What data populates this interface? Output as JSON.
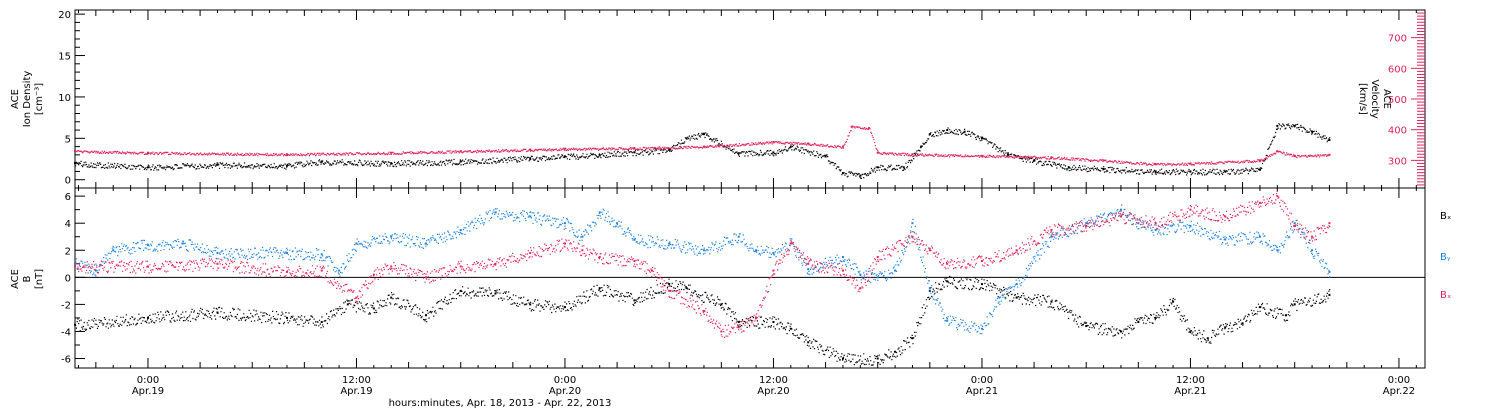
{
  "xaxis": {
    "title": "hours:minutes, Apr. 18, 2013 - Apr. 22, 2013",
    "ticks": [
      {
        "hour": 0,
        "time": "0:00",
        "day": "Apr.19"
      },
      {
        "hour": 12,
        "time": "12:00",
        "day": "Apr.19"
      },
      {
        "hour": 24,
        "time": "0:00",
        "day": "Apr.20"
      },
      {
        "hour": 36,
        "time": "12:00",
        "day": "Apr.20"
      },
      {
        "hour": 48,
        "time": "0:00",
        "day": "Apr.21"
      },
      {
        "hour": 60,
        "time": "12:00",
        "day": "Apr.21"
      },
      {
        "hour": 72,
        "time": "0:00",
        "day": "Apr.22"
      }
    ],
    "range_hours": [
      -4.2,
      73.5
    ]
  },
  "colors": {
    "black": "#000000",
    "pink": "#e0245a",
    "blue": "#1e82e0"
  },
  "chart_data": [
    {
      "type": "scatter",
      "panel": "top",
      "ylabel_lines": [
        "ACE",
        "Ion Density",
        "[cm⁻³]"
      ],
      "ylim": [
        -1,
        20.5
      ],
      "yticks": [
        0,
        5,
        10,
        15,
        20
      ],
      "y2label_lines": [
        "ACE",
        "Velocity",
        "[km/s]"
      ],
      "y2lim": [
        210,
        790
      ],
      "y2ticks": [
        300,
        400,
        500,
        600,
        700
      ],
      "series": [
        {
          "color": "black",
          "axis": "left",
          "points": [
            [
              -4.2,
              2.0
            ],
            [
              0,
              1.5
            ],
            [
              4,
              1.8
            ],
            [
              8,
              1.7
            ],
            [
              10,
              2.2
            ],
            [
              14,
              2.0
            ],
            [
              18,
              2.2
            ],
            [
              22,
              2.6
            ],
            [
              24,
              2.8
            ],
            [
              26,
              3.0
            ],
            [
              28,
              3.3
            ],
            [
              30,
              3.6
            ],
            [
              31,
              5.0
            ],
            [
              32,
              5.5
            ],
            [
              34,
              3.2
            ],
            [
              36,
              3.3
            ],
            [
              37,
              4.0
            ],
            [
              39,
              2.8
            ],
            [
              40,
              0.8
            ],
            [
              41,
              0.5
            ],
            [
              42,
              1.5
            ],
            [
              43.5,
              1.5
            ],
            [
              44.5,
              4.0
            ],
            [
              45,
              5.5
            ],
            [
              46,
              6.0
            ],
            [
              47,
              5.8
            ],
            [
              48,
              5.0
            ],
            [
              49.5,
              3.0
            ],
            [
              51,
              2.3
            ],
            [
              53,
              1.5
            ],
            [
              55,
              1.3
            ],
            [
              58,
              1.0
            ],
            [
              60,
              1.0
            ],
            [
              62,
              1.0
            ],
            [
              64,
              1.2
            ],
            [
              65,
              6.5
            ],
            [
              66,
              6.5
            ],
            [
              67,
              5.8
            ],
            [
              68,
              4.8
            ]
          ]
        },
        {
          "color": "pink",
          "axis": "right",
          "points": [
            [
              -4.2,
              330
            ],
            [
              0,
              325
            ],
            [
              8,
              320
            ],
            [
              14,
              325
            ],
            [
              18,
              330
            ],
            [
              22,
              335
            ],
            [
              24,
              338
            ],
            [
              28,
              340
            ],
            [
              32,
              345
            ],
            [
              36,
              360
            ],
            [
              38,
              355
            ],
            [
              40,
              345
            ],
            [
              40.5,
              410
            ],
            [
              41.5,
              405
            ],
            [
              42,
              325
            ],
            [
              44,
              320
            ],
            [
              48,
              315
            ],
            [
              52,
              310
            ],
            [
              55,
              300
            ],
            [
              58,
              288
            ],
            [
              60,
              290
            ],
            [
              64,
              300
            ],
            [
              65,
              330
            ],
            [
              66,
              315
            ],
            [
              68,
              318
            ]
          ]
        }
      ]
    },
    {
      "type": "scatter",
      "panel": "bottom",
      "ylabel_lines": [
        "ACE",
        "B",
        "[nT]"
      ],
      "ylim": [
        -6.7,
        6.6
      ],
      "yticks": [
        -6,
        -4,
        -2,
        0,
        2,
        4,
        6
      ],
      "series": [
        {
          "name": "Bₓ",
          "color": "black",
          "points": [
            [
              -4.2,
              -3.5
            ],
            [
              0,
              -3.0
            ],
            [
              4,
              -2.6
            ],
            [
              8,
              -3.0
            ],
            [
              10,
              -3.3
            ],
            [
              11.5,
              -2.0
            ],
            [
              13,
              -2.3
            ],
            [
              14,
              -1.5
            ],
            [
              16,
              -2.8
            ],
            [
              18,
              -1.0
            ],
            [
              20,
              -1.2
            ],
            [
              22,
              -2.0
            ],
            [
              24,
              -2.2
            ],
            [
              26,
              -0.8
            ],
            [
              28,
              -1.7
            ],
            [
              30,
              -0.5
            ],
            [
              31,
              -0.8
            ],
            [
              33,
              -2.0
            ],
            [
              34,
              -3.3
            ],
            [
              36,
              -3.3
            ],
            [
              37,
              -3.8
            ],
            [
              38,
              -4.8
            ],
            [
              40,
              -6.0
            ],
            [
              42,
              -6.0
            ],
            [
              43,
              -5.5
            ],
            [
              44,
              -4.5
            ],
            [
              45,
              -1.0
            ],
            [
              46,
              -0.3
            ],
            [
              48,
              -0.5
            ],
            [
              50,
              -1.5
            ],
            [
              52,
              -1.8
            ],
            [
              54,
              -3.6
            ],
            [
              56,
              -4.0
            ],
            [
              57,
              -3.3
            ],
            [
              58,
              -3.0
            ],
            [
              59,
              -1.8
            ],
            [
              60,
              -4.0
            ],
            [
              61,
              -4.5
            ],
            [
              62,
              -3.7
            ],
            [
              63,
              -3.4
            ],
            [
              64,
              -2.2
            ],
            [
              65.5,
              -2.8
            ],
            [
              66,
              -2.0
            ],
            [
              68,
              -1.3
            ]
          ]
        },
        {
          "name": "Bᵧ",
          "color": "blue",
          "points": [
            [
              -4.2,
              1.0
            ],
            [
              -3,
              0.5
            ],
            [
              -2,
              2.0
            ],
            [
              0,
              2.4
            ],
            [
              2,
              2.5
            ],
            [
              4,
              1.8
            ],
            [
              8,
              1.8
            ],
            [
              10,
              1.7
            ],
            [
              11,
              0.5
            ],
            [
              12,
              2.5
            ],
            [
              14,
              3.0
            ],
            [
              16,
              2.5
            ],
            [
              18,
              3.5
            ],
            [
              20,
              4.8
            ],
            [
              22,
              4.5
            ],
            [
              24,
              4.0
            ],
            [
              25,
              3.0
            ],
            [
              26,
              4.8
            ],
            [
              27,
              4.0
            ],
            [
              28,
              2.8
            ],
            [
              30,
              2.5
            ],
            [
              32,
              2.0
            ],
            [
              34,
              3.0
            ],
            [
              35,
              2.0
            ],
            [
              36,
              1.8
            ],
            [
              37,
              2.5
            ],
            [
              38,
              0.6
            ],
            [
              40,
              1.5
            ],
            [
              41,
              0.2
            ],
            [
              42,
              0.0
            ],
            [
              43,
              0.5
            ],
            [
              44,
              4.0
            ],
            [
              45,
              -0.8
            ],
            [
              46,
              -3.2
            ],
            [
              48,
              -3.8
            ],
            [
              49,
              -1.5
            ],
            [
              50,
              -0.5
            ],
            [
              52,
              3.0
            ],
            [
              54,
              4.0
            ],
            [
              56,
              5.0
            ],
            [
              57,
              4.0
            ],
            [
              58,
              3.5
            ],
            [
              60,
              3.8
            ],
            [
              62,
              2.8
            ],
            [
              64,
              3.0
            ],
            [
              65,
              2.0
            ],
            [
              66,
              4.0
            ],
            [
              67,
              2.0
            ],
            [
              68,
              0.4
            ]
          ]
        },
        {
          "name": "Bₓ",
          "color": "pink",
          "points": [
            [
              -4.2,
              0.8
            ],
            [
              0,
              0.8
            ],
            [
              4,
              1.0
            ],
            [
              8,
              0.4
            ],
            [
              10,
              0.5
            ],
            [
              12,
              -1.5
            ],
            [
              13,
              0.2
            ],
            [
              14,
              0.8
            ],
            [
              16,
              0.0
            ],
            [
              18,
              0.8
            ],
            [
              20,
              1.0
            ],
            [
              22,
              1.8
            ],
            [
              24,
              2.5
            ],
            [
              25,
              2.0
            ],
            [
              26,
              1.5
            ],
            [
              28,
              1.2
            ],
            [
              29,
              0.5
            ],
            [
              30,
              -1.0
            ],
            [
              32,
              -2.5
            ],
            [
              33,
              -4.0
            ],
            [
              34,
              -3.7
            ],
            [
              35,
              -3.0
            ],
            [
              36,
              0.5
            ],
            [
              37,
              2.5
            ],
            [
              38,
              1.0
            ],
            [
              40,
              0.5
            ],
            [
              41,
              -0.8
            ],
            [
              42,
              1.5
            ],
            [
              44,
              3.0
            ],
            [
              45,
              2.0
            ],
            [
              46,
              1.0
            ],
            [
              48,
              1.2
            ],
            [
              50,
              2.0
            ],
            [
              52,
              3.5
            ],
            [
              54,
              3.8
            ],
            [
              56,
              4.5
            ],
            [
              58,
              4.0
            ],
            [
              60,
              5.0
            ],
            [
              62,
              4.5
            ],
            [
              64,
              5.5
            ],
            [
              65,
              6.0
            ],
            [
              66,
              3.8
            ],
            [
              67,
              3.0
            ],
            [
              68,
              4.0
            ]
          ]
        }
      ],
      "legend_side": "right"
    }
  ]
}
